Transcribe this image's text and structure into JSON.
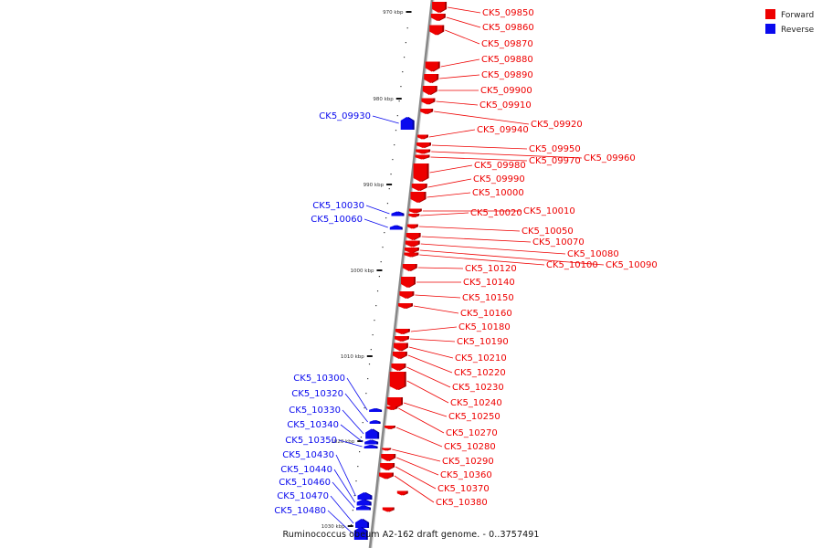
{
  "caption": "Ruminococcus obeum A2-162 draft genome. - 0..3757491",
  "legend": {
    "items": [
      {
        "label": "Forward",
        "color": "#ee0000"
      },
      {
        "label": "Reverse",
        "color": "#0a0aee"
      }
    ]
  },
  "colors": {
    "forward": "#ee0000",
    "forward_dark": "#a30000",
    "reverse": "#0a0aee",
    "reverse_dark": "#000099",
    "backbone": "#888888"
  },
  "ticks": [
    "970 kbp",
    "980 kbp",
    "990 kbp",
    "1000 kbp",
    "1010 kbp",
    "1020 kbp",
    "1030 kbp"
  ],
  "genes": [
    {
      "name": "CK5_09850",
      "strand": "forward"
    },
    {
      "name": "CK5_09860",
      "strand": "forward"
    },
    {
      "name": "CK5_09870",
      "strand": "forward"
    },
    {
      "name": "CK5_09880",
      "strand": "forward"
    },
    {
      "name": "CK5_09890",
      "strand": "forward"
    },
    {
      "name": "CK5_09900",
      "strand": "forward"
    },
    {
      "name": "CK5_09910",
      "strand": "forward"
    },
    {
      "name": "CK5_09920",
      "strand": "forward"
    },
    {
      "name": "CK5_09930",
      "strand": "reverse"
    },
    {
      "name": "CK5_09940",
      "strand": "forward"
    },
    {
      "name": "CK5_09950",
      "strand": "forward"
    },
    {
      "name": "CK5_09960",
      "strand": "forward"
    },
    {
      "name": "CK5_09970",
      "strand": "forward"
    },
    {
      "name": "CK5_09980",
      "strand": "forward"
    },
    {
      "name": "CK5_09990",
      "strand": "forward"
    },
    {
      "name": "CK5_10000",
      "strand": "forward"
    },
    {
      "name": "CK5_10010",
      "strand": "forward"
    },
    {
      "name": "CK5_10020",
      "strand": "forward"
    },
    {
      "name": "CK5_10030",
      "strand": "reverse"
    },
    {
      "name": "CK5_10050",
      "strand": "forward"
    },
    {
      "name": "CK5_10060",
      "strand": "reverse"
    },
    {
      "name": "CK5_10070",
      "strand": "forward"
    },
    {
      "name": "CK5_10080",
      "strand": "forward"
    },
    {
      "name": "CK5_10090",
      "strand": "forward"
    },
    {
      "name": "CK5_10100",
      "strand": "forward"
    },
    {
      "name": "CK5_10120",
      "strand": "forward"
    },
    {
      "name": "CK5_10140",
      "strand": "forward"
    },
    {
      "name": "CK5_10150",
      "strand": "forward"
    },
    {
      "name": "CK5_10160",
      "strand": "forward"
    },
    {
      "name": "CK5_10180",
      "strand": "forward"
    },
    {
      "name": "CK5_10190",
      "strand": "forward"
    },
    {
      "name": "CK5_10210",
      "strand": "forward"
    },
    {
      "name": "CK5_10220",
      "strand": "forward"
    },
    {
      "name": "CK5_10230",
      "strand": "forward"
    },
    {
      "name": "CK5_10240",
      "strand": "forward"
    },
    {
      "name": "CK5_10250",
      "strand": "forward"
    },
    {
      "name": "CK5_10270",
      "strand": "forward"
    },
    {
      "name": "CK5_10280",
      "strand": "forward"
    },
    {
      "name": "CK5_10290",
      "strand": "forward"
    },
    {
      "name": "CK5_10300",
      "strand": "reverse"
    },
    {
      "name": "CK5_10320",
      "strand": "reverse"
    },
    {
      "name": "CK5_10330",
      "strand": "reverse"
    },
    {
      "name": "CK5_10340",
      "strand": "reverse"
    },
    {
      "name": "CK5_10350",
      "strand": "reverse"
    },
    {
      "name": "CK5_10360",
      "strand": "forward"
    },
    {
      "name": "CK5_10370",
      "strand": "forward"
    },
    {
      "name": "CK5_10380",
      "strand": "forward"
    },
    {
      "name": "CK5_10430",
      "strand": "reverse"
    },
    {
      "name": "CK5_10440",
      "strand": "reverse"
    },
    {
      "name": "CK5_10460",
      "strand": "reverse"
    },
    {
      "name": "CK5_10470",
      "strand": "reverse"
    },
    {
      "name": "CK5_10480",
      "strand": "reverse"
    }
  ]
}
